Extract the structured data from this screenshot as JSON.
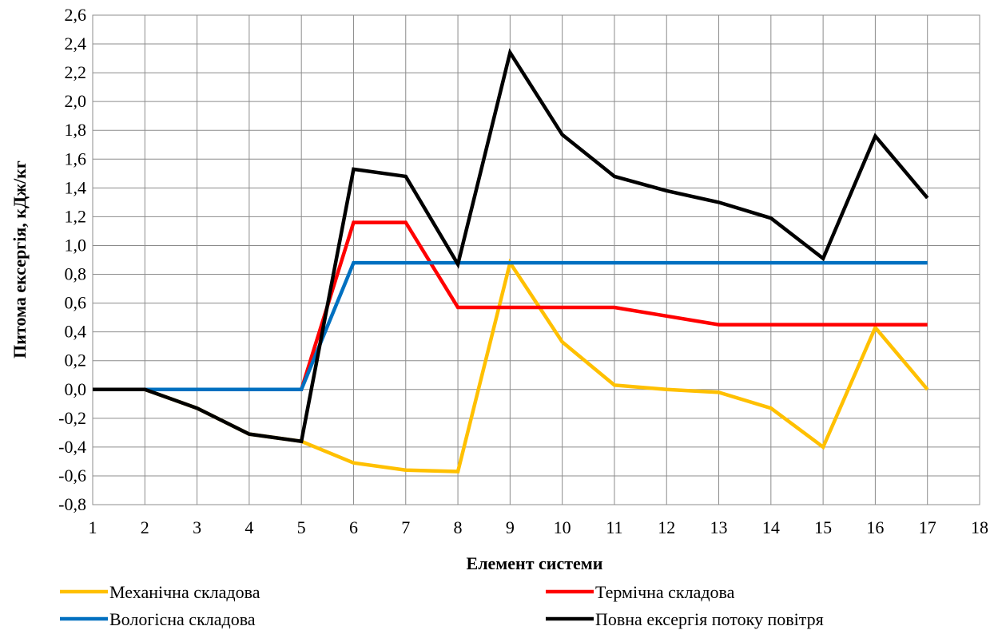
{
  "chart_data": {
    "type": "line",
    "title": "",
    "xlabel": "Елемент системи",
    "ylabel": "Питома ексергія, кДж/кг",
    "xlim": [
      1,
      18
    ],
    "ylim": [
      -0.8,
      2.6
    ],
    "x_ticks": [
      "1",
      "2",
      "3",
      "4",
      "5",
      "6",
      "7",
      "8",
      "9",
      "10",
      "11",
      "12",
      "13",
      "14",
      "15",
      "16",
      "17",
      "18"
    ],
    "y_ticks": [
      "-0,8",
      "-0,6",
      "-0,4",
      "-0,2",
      "0,0",
      "0,2",
      "0,4",
      "0,6",
      "0,8",
      "1,0",
      "1,2",
      "1,4",
      "1,6",
      "1,8",
      "2,0",
      "2,2",
      "2,4",
      "2,6"
    ],
    "grid": true,
    "legend_position": "bottom",
    "x": [
      1,
      2,
      3,
      4,
      5,
      6,
      7,
      8,
      9,
      10,
      11,
      12,
      13,
      14,
      15,
      16,
      17
    ],
    "series": [
      {
        "name": "Механічна складова",
        "color": "#FFC000",
        "values": [
          0,
          0,
          -0.13,
          -0.31,
          -0.36,
          -0.51,
          -0.56,
          -0.57,
          0.88,
          0.33,
          0.03,
          0.0,
          -0.02,
          -0.13,
          -0.4,
          0.43,
          0.0
        ]
      },
      {
        "name": "Термічна складова",
        "color": "#FF0000",
        "values": [
          0,
          0,
          0,
          0,
          0,
          1.16,
          1.16,
          0.57,
          0.57,
          0.57,
          0.57,
          0.51,
          0.45,
          0.45,
          0.45,
          0.45,
          0.45
        ]
      },
      {
        "name": "Вологісна складова",
        "color": "#0070C0",
        "values": [
          0,
          0,
          0,
          0,
          0,
          0.88,
          0.88,
          0.88,
          0.88,
          0.88,
          0.88,
          0.88,
          0.88,
          0.88,
          0.88,
          0.88,
          0.88
        ]
      },
      {
        "name": "Повна ексергія потоку повітря",
        "color": "#000000",
        "values": [
          0,
          0,
          -0.13,
          -0.31,
          -0.36,
          1.53,
          1.48,
          0.87,
          2.34,
          1.77,
          1.48,
          1.38,
          1.3,
          1.19,
          0.91,
          1.76,
          1.33
        ]
      }
    ],
    "draw_order": [
      0,
      1,
      2,
      3
    ]
  }
}
